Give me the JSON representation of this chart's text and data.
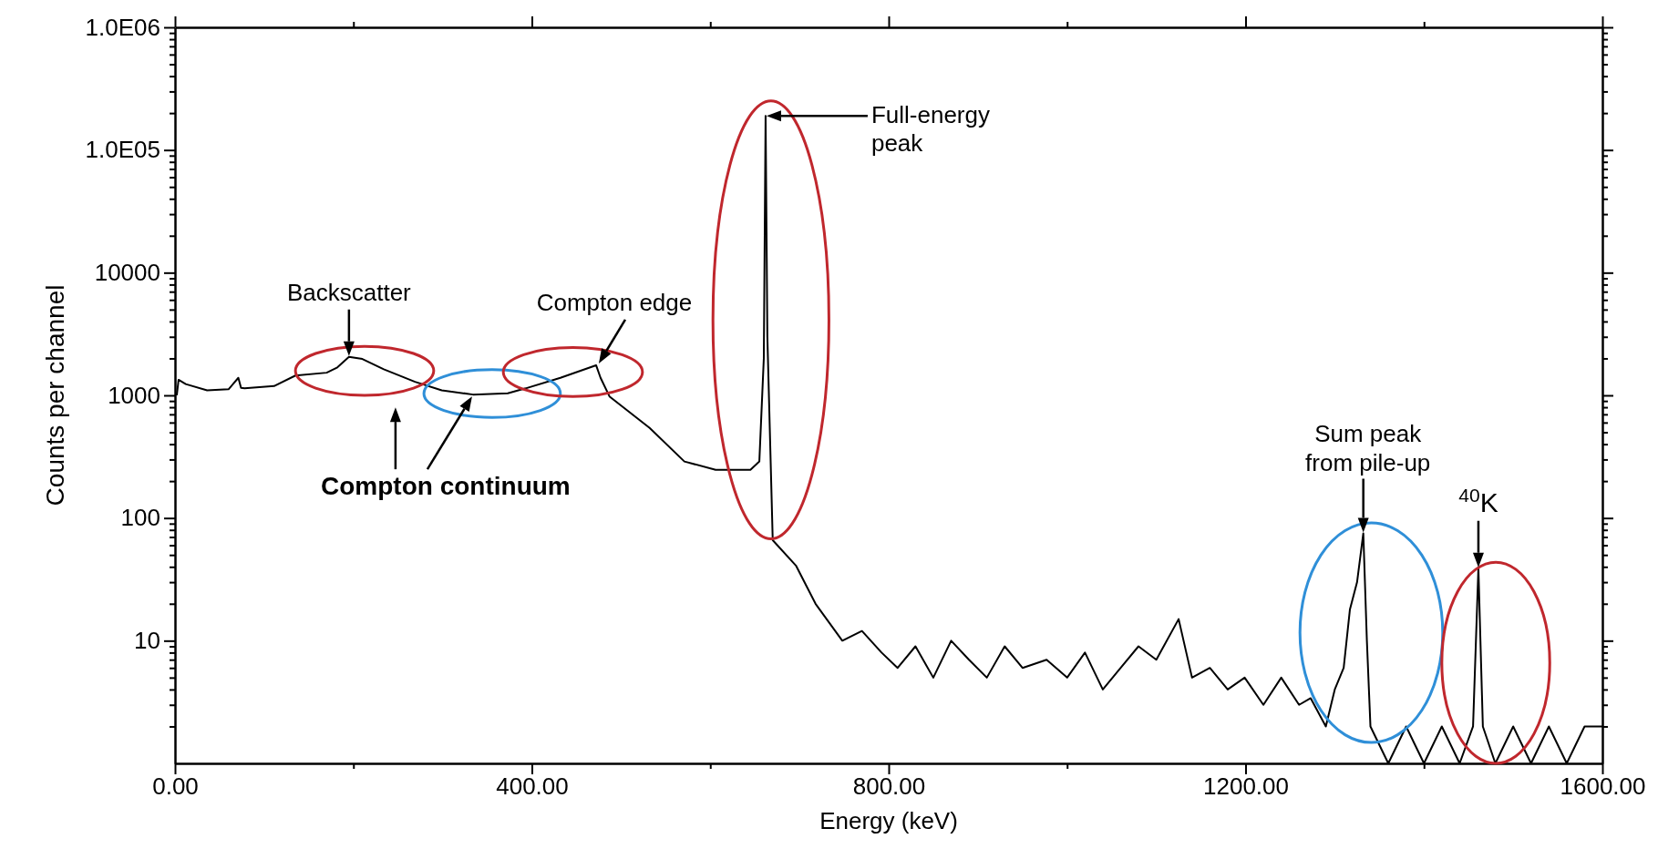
{
  "chart_data": {
    "type": "line",
    "xlabel": "Energy (keV)",
    "ylabel": "Counts per channel",
    "log": "y",
    "grid": false,
    "legend": false,
    "marker": "none",
    "line_style": "solid",
    "xlim": [
      0,
      1600
    ],
    "xticks": [
      {
        "value": 0,
        "label": "0.00"
      },
      {
        "value": 200,
        "label": null
      },
      {
        "value": 400,
        "label": "400.00"
      },
      {
        "value": 600,
        "label": null
      },
      {
        "value": 800,
        "label": "800.00"
      },
      {
        "value": 1000,
        "label": null
      },
      {
        "value": 1200,
        "label": "1200.00"
      },
      {
        "value": 1400,
        "label": null
      },
      {
        "value": 1600,
        "label": "1600.00"
      }
    ],
    "ylim": [
      1,
      1000000
    ],
    "yticks": [
      {
        "value": 2,
        "label": null
      },
      {
        "value": 3,
        "label": null
      },
      {
        "value": 4,
        "label": null
      },
      {
        "value": 5,
        "label": null
      },
      {
        "value": 6,
        "label": null
      },
      {
        "value": 7,
        "label": null
      },
      {
        "value": 8,
        "label": null
      },
      {
        "value": 9,
        "label": null
      },
      {
        "value": 10,
        "label": "10"
      },
      {
        "value": 20,
        "label": null
      },
      {
        "value": 30,
        "label": null
      },
      {
        "value": 40,
        "label": null
      },
      {
        "value": 50,
        "label": null
      },
      {
        "value": 60,
        "label": null
      },
      {
        "value": 70,
        "label": null
      },
      {
        "value": 80,
        "label": null
      },
      {
        "value": 90,
        "label": null
      },
      {
        "value": 100,
        "label": "100"
      },
      {
        "value": 200,
        "label": null
      },
      {
        "value": 300,
        "label": null
      },
      {
        "value": 400,
        "label": null
      },
      {
        "value": 500,
        "label": null
      },
      {
        "value": 600,
        "label": null
      },
      {
        "value": 700,
        "label": null
      },
      {
        "value": 800,
        "label": null
      },
      {
        "value": 900,
        "label": null
      },
      {
        "value": 1000,
        "label": "1000"
      },
      {
        "value": 2000,
        "label": null
      },
      {
        "value": 3000,
        "label": null
      },
      {
        "value": 4000,
        "label": null
      },
      {
        "value": 5000,
        "label": null
      },
      {
        "value": 6000,
        "label": null
      },
      {
        "value": 7000,
        "label": null
      },
      {
        "value": 8000,
        "label": null
      },
      {
        "value": 9000,
        "label": null
      },
      {
        "value": 10000,
        "label": "10000"
      },
      {
        "value": 20000,
        "label": null
      },
      {
        "value": 30000,
        "label": null
      },
      {
        "value": 40000,
        "label": null
      },
      {
        "value": 50000,
        "label": null
      },
      {
        "value": 60000,
        "label": null
      },
      {
        "value": 70000,
        "label": null
      },
      {
        "value": 80000,
        "label": null
      },
      {
        "value": 90000,
        "label": null
      },
      {
        "value": 100000,
        "label": "1.0E05"
      },
      {
        "value": 200000,
        "label": null
      },
      {
        "value": 300000,
        "label": null
      },
      {
        "value": 400000,
        "label": null
      },
      {
        "value": 500000,
        "label": null
      },
      {
        "value": 600000,
        "label": null
      },
      {
        "value": 700000,
        "label": null
      },
      {
        "value": 800000,
        "label": null
      },
      {
        "value": 900000,
        "label": null
      },
      {
        "value": 1000000,
        "label": "1.0E06"
      }
    ],
    "series": [
      {
        "color": "#000000",
        "x": [
          2,
          4,
          12,
          36,
          60,
          71,
          74,
          78,
          111,
          135,
          170,
          182,
          195,
          210,
          234,
          269,
          299,
          334,
          373,
          393,
          432,
          472,
          477,
          487,
          532,
          571,
          606,
          645,
          655,
          660,
          662,
          664,
          670,
          696,
          718,
          748,
          770,
          792,
          810,
          830,
          850,
          870,
          890,
          910,
          930,
          950,
          977,
          1000,
          1020,
          1040,
          1060,
          1080,
          1100,
          1125,
          1140,
          1160,
          1180,
          1199,
          1220,
          1240,
          1260,
          1273,
          1290,
          1300,
          1310,
          1317,
          1325,
          1332,
          1336,
          1340,
          1360,
          1380,
          1400,
          1420,
          1440,
          1455,
          1461,
          1466,
          1480,
          1500,
          1520,
          1540,
          1560,
          1580,
          1600
        ],
        "values": [
          1000,
          1340,
          1235,
          1100,
          1120,
          1390,
          1150,
          1140,
          1190,
          1450,
          1530,
          1690,
          2060,
          1980,
          1630,
          1290,
          1100,
          1015,
          1040,
          1140,
          1390,
          1760,
          1390,
          980,
          542,
          289,
          247,
          247,
          289,
          2000,
          190000,
          3000,
          66,
          41,
          20,
          10,
          12,
          8,
          6,
          9,
          5,
          10,
          7,
          5,
          9,
          6,
          7,
          5,
          8,
          4,
          6,
          9,
          7,
          15,
          5,
          6,
          4,
          5,
          3,
          5,
          3,
          3.4,
          2,
          4,
          6,
          18,
          30,
          75,
          10,
          2,
          1,
          2,
          1,
          2,
          1,
          2,
          39,
          2,
          1,
          2,
          1,
          2,
          1,
          2,
          2
        ]
      }
    ],
    "annotations": [
      {
        "text": "Backscatter",
        "x": 195,
        "y": 2060
      },
      {
        "text": "Compton edge",
        "x": 472,
        "y": 1760
      },
      "Full-energy\npeak",
      {
        "text": "Sum peak\nfrom pile-up",
        "x": 1332,
        "y": 75
      },
      {
        "text": "$^{40}$K",
        "x": 1461,
        "y": 39
      },
      "Compton continuum"
    ]
  }
}
